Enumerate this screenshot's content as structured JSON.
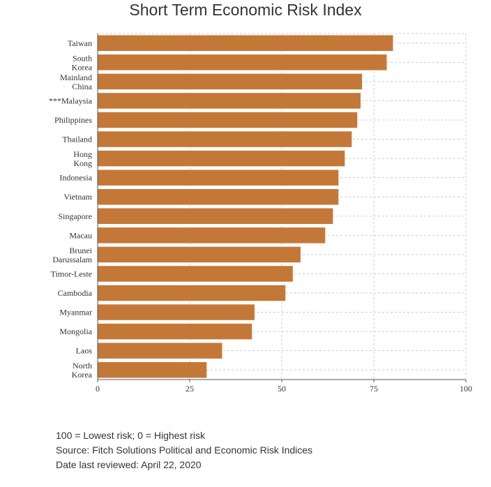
{
  "chart_data": {
    "type": "bar",
    "orientation": "horizontal",
    "title": "Short Term Economic Risk Index",
    "categories": [
      "Taiwan",
      "South Korea",
      "Mainland China",
      "***Malaysia",
      "Philippines",
      "Thailand",
      "Hong Kong",
      "Indonesia",
      "Vietnam",
      "Singapore",
      "Macau",
      "Brunei Darussalam",
      "Timor-Leste",
      "Cambodia",
      "Myanmar",
      "Mongolia",
      "Laos",
      "North Korea"
    ],
    "values": [
      80.2,
      78.5,
      71.8,
      71.4,
      70.5,
      69.0,
      67.1,
      65.4,
      65.4,
      63.9,
      61.8,
      55.1,
      53.0,
      51.0,
      42.6,
      41.9,
      33.8,
      29.6
    ],
    "xlim": [
      0,
      100
    ],
    "xticks": [
      0,
      25,
      50,
      75,
      100
    ],
    "xtick_labels": [
      "0",
      "25",
      "50",
      "75",
      "100"
    ],
    "grid": true,
    "bar_color": "#c47838"
  },
  "footer": {
    "line1": "100 = Lowest risk; 0 = Highest risk",
    "line2": "Source: Fitch Solutions Political and Economic Risk Indices",
    "line3": "Date last reviewed: April 22, 2020"
  }
}
